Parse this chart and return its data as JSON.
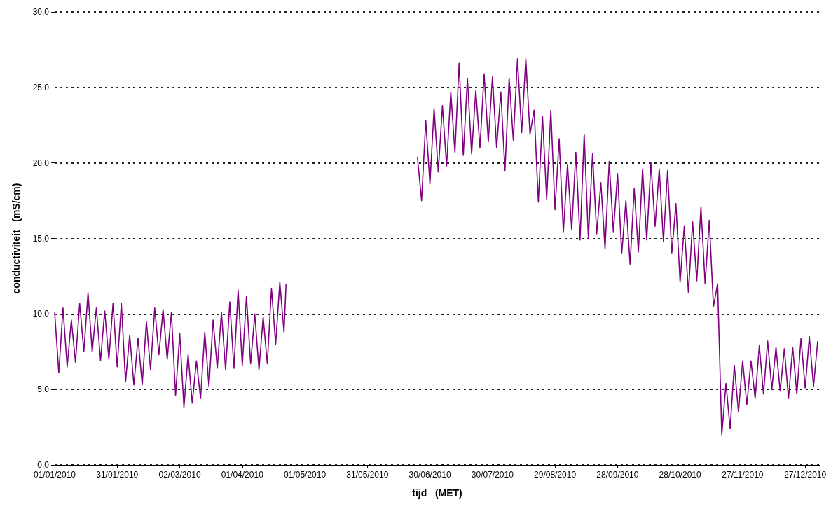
{
  "chart_data": {
    "type": "line",
    "xlabel": "tijd   (MET)",
    "ylabel": "conductiviteit   (mS/cm)",
    "xlim": [
      "2010-01-01",
      "2011-01-03"
    ],
    "xticks": [
      {
        "value": "2010-01-01",
        "label": "01/01/2010"
      },
      {
        "value": "2010-01-31",
        "label": "31/01/2010"
      },
      {
        "value": "2010-03-02",
        "label": "02/03/2010"
      },
      {
        "value": "2010-04-01",
        "label": "01/04/2010"
      },
      {
        "value": "2010-05-01",
        "label": "01/05/2010"
      },
      {
        "value": "2010-05-31",
        "label": "31/05/2010"
      },
      {
        "value": "2010-06-30",
        "label": "30/06/2010"
      },
      {
        "value": "2010-07-30",
        "label": "30/07/2010"
      },
      {
        "value": "2010-08-29",
        "label": "29/08/2010"
      },
      {
        "value": "2010-09-28",
        "label": "28/09/2010"
      },
      {
        "value": "2010-10-28",
        "label": "28/10/2010"
      },
      {
        "value": "2010-11-27",
        "label": "27/11/2010"
      },
      {
        "value": "2010-12-27",
        "label": "27/12/2010"
      }
    ],
    "ylim": [
      0,
      30
    ],
    "yticks": [
      {
        "value": 0,
        "label": "0.0"
      },
      {
        "value": 5,
        "label": "5.0"
      },
      {
        "value": 10,
        "label": "10.0"
      },
      {
        "value": 15,
        "label": "15.0"
      },
      {
        "value": 20,
        "label": "20.0"
      },
      {
        "value": 25,
        "label": "25.0"
      },
      {
        "value": 30,
        "label": "30.0"
      }
    ],
    "grid": "y",
    "series": [
      {
        "color": "#800080",
        "x": [
          "2010-01-01",
          "2010-01-03",
          "2010-01-05",
          "2010-01-07",
          "2010-01-09",
          "2010-01-11",
          "2010-01-13",
          "2010-01-15",
          "2010-01-17",
          "2010-01-19",
          "2010-01-21",
          "2010-01-23",
          "2010-01-25",
          "2010-01-27",
          "2010-01-29",
          "2010-01-31",
          "2010-02-02",
          "2010-02-04",
          "2010-02-06",
          "2010-02-08",
          "2010-02-10",
          "2010-02-12",
          "2010-02-14",
          "2010-02-16",
          "2010-02-18",
          "2010-02-20",
          "2010-02-22",
          "2010-02-24",
          "2010-02-26",
          "2010-02-28",
          "2010-03-02",
          "2010-03-04",
          "2010-03-06",
          "2010-03-08",
          "2010-03-10",
          "2010-03-12",
          "2010-03-14",
          "2010-03-16",
          "2010-03-18",
          "2010-03-20",
          "2010-03-22",
          "2010-03-24",
          "2010-03-26",
          "2010-03-28",
          "2010-03-30",
          "2010-04-01",
          "2010-04-03",
          "2010-04-05",
          "2010-04-07",
          "2010-04-09",
          "2010-04-11",
          "2010-04-13",
          "2010-04-15",
          "2010-04-17",
          "2010-04-19",
          "2010-04-21",
          "2010-04-22",
          "2010-05-23",
          "2010-06-24",
          "2010-06-26",
          "2010-06-28",
          "2010-06-30",
          "2010-07-02",
          "2010-07-04",
          "2010-07-06",
          "2010-07-08",
          "2010-07-10",
          "2010-07-12",
          "2010-07-14",
          "2010-07-16",
          "2010-07-18",
          "2010-07-20",
          "2010-07-22",
          "2010-07-24",
          "2010-07-26",
          "2010-07-28",
          "2010-07-30",
          "2010-08-01",
          "2010-08-03",
          "2010-08-05",
          "2010-08-07",
          "2010-08-09",
          "2010-08-11",
          "2010-08-13",
          "2010-08-15",
          "2010-08-17",
          "2010-08-19",
          "2010-08-21",
          "2010-08-23",
          "2010-08-25",
          "2010-08-27",
          "2010-08-29",
          "2010-08-31",
          "2010-09-02",
          "2010-09-04",
          "2010-09-06",
          "2010-09-08",
          "2010-09-10",
          "2010-09-12",
          "2010-09-14",
          "2010-09-16",
          "2010-09-18",
          "2010-09-20",
          "2010-09-22",
          "2010-09-24",
          "2010-09-26",
          "2010-09-28",
          "2010-09-30",
          "2010-10-02",
          "2010-10-04",
          "2010-10-06",
          "2010-10-08",
          "2010-10-10",
          "2010-10-12",
          "2010-10-14",
          "2010-10-16",
          "2010-10-18",
          "2010-10-20",
          "2010-10-22",
          "2010-10-24",
          "2010-10-26",
          "2010-10-28",
          "2010-10-30",
          "2010-11-01",
          "2010-11-03",
          "2010-11-05",
          "2010-11-07",
          "2010-11-09",
          "2010-11-11",
          "2010-11-13",
          "2010-11-15",
          "2010-11-17",
          "2010-11-19",
          "2010-11-21",
          "2010-11-23",
          "2010-11-25",
          "2010-11-27",
          "2010-11-29",
          "2010-12-01",
          "2010-12-03",
          "2010-12-05",
          "2010-12-07",
          "2010-12-09",
          "2010-12-11",
          "2010-12-13",
          "2010-12-15",
          "2010-12-17",
          "2010-12-19",
          "2010-12-21",
          "2010-12-23",
          "2010-12-25",
          "2010-12-27",
          "2010-12-29",
          "2010-12-31",
          "2011-01-02"
        ],
        "values": [
          10.1,
          6.1,
          10.4,
          6.5,
          9.6,
          6.8,
          10.7,
          7.5,
          11.4,
          7.5,
          10.4,
          6.9,
          10.2,
          7.0,
          10.7,
          6.5,
          10.7,
          5.5,
          8.6,
          5.3,
          8.4,
          5.3,
          9.5,
          6.3,
          10.4,
          7.3,
          10.3,
          7.0,
          10.1,
          4.6,
          8.7,
          3.8,
          7.3,
          4.1,
          6.9,
          4.4,
          8.8,
          5.2,
          9.6,
          6.4,
          10.1,
          6.3,
          10.8,
          6.4,
          11.6,
          6.6,
          11.2,
          6.7,
          10.0,
          6.3,
          9.8,
          6.7,
          11.7,
          8.0,
          12.1,
          8.8,
          12.0,
          null,
          20.4,
          17.5,
          22.8,
          18.6,
          23.6,
          19.4,
          23.8,
          19.8,
          24.7,
          20.7,
          26.6,
          20.5,
          25.6,
          20.6,
          24.8,
          21.0,
          25.9,
          21.4,
          25.7,
          21.0,
          24.7,
          19.5,
          25.6,
          21.5,
          26.9,
          22.0,
          26.9,
          21.9,
          23.5,
          17.4,
          23.1,
          17.6,
          23.5,
          16.9,
          21.6,
          15.4,
          19.9,
          15.6,
          20.7,
          14.9,
          21.9,
          15.0,
          20.6,
          15.3,
          18.7,
          14.3,
          20.1,
          15.4,
          19.3,
          14.0,
          17.5,
          13.3,
          18.3,
          14.1,
          19.6,
          14.9,
          20.0,
          15.8,
          19.6,
          14.8,
          19.5,
          14.0,
          17.3,
          12.1,
          15.8,
          11.4,
          16.1,
          12.2,
          17.1,
          12.0,
          16.2,
          10.5,
          12.0,
          2.0,
          5.4,
          2.4,
          6.6,
          3.5,
          6.9,
          4.0,
          6.9,
          4.4,
          7.9,
          4.7,
          8.2,
          5.0,
          7.8,
          4.9,
          7.7,
          4.4,
          7.8,
          4.7,
          8.4,
          5.1,
          8.5,
          5.2,
          8.2
        ]
      }
    ]
  }
}
